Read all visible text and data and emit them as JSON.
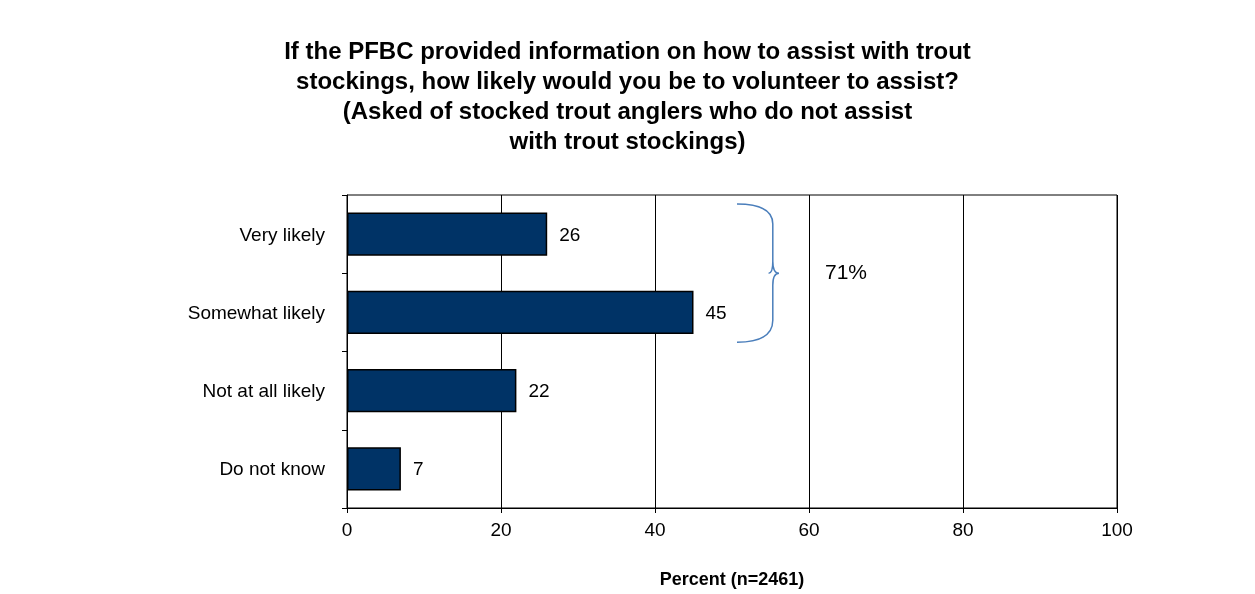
{
  "chart_data": {
    "type": "bar",
    "title": "If the PFBC provided information on how to assist with trout\nstockings, how likely would you be to volunteer to assist?\n(Asked of stocked trout anglers who do not assist\nwith trout stockings)",
    "orientation": "horizontal",
    "categories": [
      "Very likely",
      "Somewhat likely",
      "Not at all likely",
      "Do not know"
    ],
    "values": [
      26,
      45,
      22,
      7
    ],
    "color": "#003366",
    "xlim": [
      0,
      100
    ],
    "xticks": [
      0,
      20,
      40,
      60,
      80,
      100
    ],
    "xlabel": "Percent (n=2461)",
    "grid": "x",
    "data_labels": true,
    "annotations": [
      "71%"
    ]
  }
}
